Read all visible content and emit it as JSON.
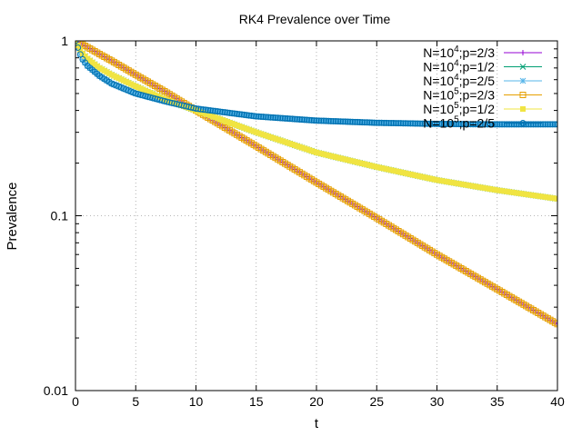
{
  "chart_data": {
    "type": "scatter",
    "title": "RK4 Prevalence over Time",
    "xlabel": "t",
    "ylabel": "Prevalence",
    "xlim": [
      0,
      40
    ],
    "ylim": [
      0.01,
      1
    ],
    "yscale": "log",
    "grid": true,
    "legend_position": "top-right",
    "x_ticks": [
      "0",
      "5",
      "10",
      "15",
      "20",
      "25",
      "30",
      "35",
      "40"
    ],
    "y_ticks": [
      "0.01",
      "0.1",
      "1"
    ],
    "series": [
      {
        "name": "N=10^4;p=2/3",
        "color": "#9400d3",
        "marker": "plus",
        "x": [
          0,
          0.5,
          1,
          2,
          3,
          5,
          7.5,
          10,
          15,
          20,
          25,
          30,
          35,
          40
        ],
        "y": [
          1.0,
          0.96,
          0.92,
          0.84,
          0.77,
          0.64,
          0.51,
          0.4,
          0.25,
          0.155,
          0.097,
          0.06,
          0.038,
          0.024
        ]
      },
      {
        "name": "N=10^4;p=1/2",
        "color": "#009e73",
        "marker": "cross",
        "x": [
          0,
          0.5,
          1,
          2,
          3,
          5,
          7.5,
          10,
          15,
          20,
          25,
          30,
          35,
          40
        ],
        "y": [
          1.0,
          0.86,
          0.79,
          0.7,
          0.64,
          0.55,
          0.46,
          0.4,
          0.3,
          0.23,
          0.19,
          0.16,
          0.14,
          0.125
        ]
      },
      {
        "name": "N=10^4;p=2/5",
        "color": "#56b4e9",
        "marker": "star",
        "x": [
          0,
          0.5,
          1,
          2,
          3,
          5,
          7.5,
          10,
          15,
          20,
          25,
          30,
          35,
          40
        ],
        "y": [
          1.0,
          0.8,
          0.72,
          0.63,
          0.57,
          0.5,
          0.45,
          0.41,
          0.37,
          0.35,
          0.34,
          0.335,
          0.333,
          0.333
        ]
      },
      {
        "name": "N=10^5;p=2/3",
        "color": "#e69f00",
        "marker": "open-square",
        "x": [
          0,
          0.5,
          1,
          2,
          3,
          5,
          7.5,
          10,
          15,
          20,
          25,
          30,
          35,
          40
        ],
        "y": [
          1.0,
          0.96,
          0.92,
          0.84,
          0.77,
          0.64,
          0.51,
          0.4,
          0.25,
          0.155,
          0.097,
          0.06,
          0.038,
          0.024
        ]
      },
      {
        "name": "N=10^5;p=1/2",
        "color": "#f0e442",
        "marker": "filled-square",
        "x": [
          0,
          0.5,
          1,
          2,
          3,
          5,
          7.5,
          10,
          15,
          20,
          25,
          30,
          35,
          40
        ],
        "y": [
          1.0,
          0.86,
          0.79,
          0.7,
          0.64,
          0.55,
          0.46,
          0.4,
          0.3,
          0.23,
          0.19,
          0.16,
          0.14,
          0.125
        ]
      },
      {
        "name": "N=10^5;p=2/5",
        "color": "#0072b2",
        "marker": "open-circle",
        "x": [
          0,
          0.5,
          1,
          2,
          3,
          5,
          7.5,
          10,
          15,
          20,
          25,
          30,
          35,
          40
        ],
        "y": [
          1.0,
          0.8,
          0.72,
          0.63,
          0.57,
          0.5,
          0.45,
          0.41,
          0.37,
          0.35,
          0.34,
          0.335,
          0.333,
          0.333
        ]
      }
    ]
  }
}
